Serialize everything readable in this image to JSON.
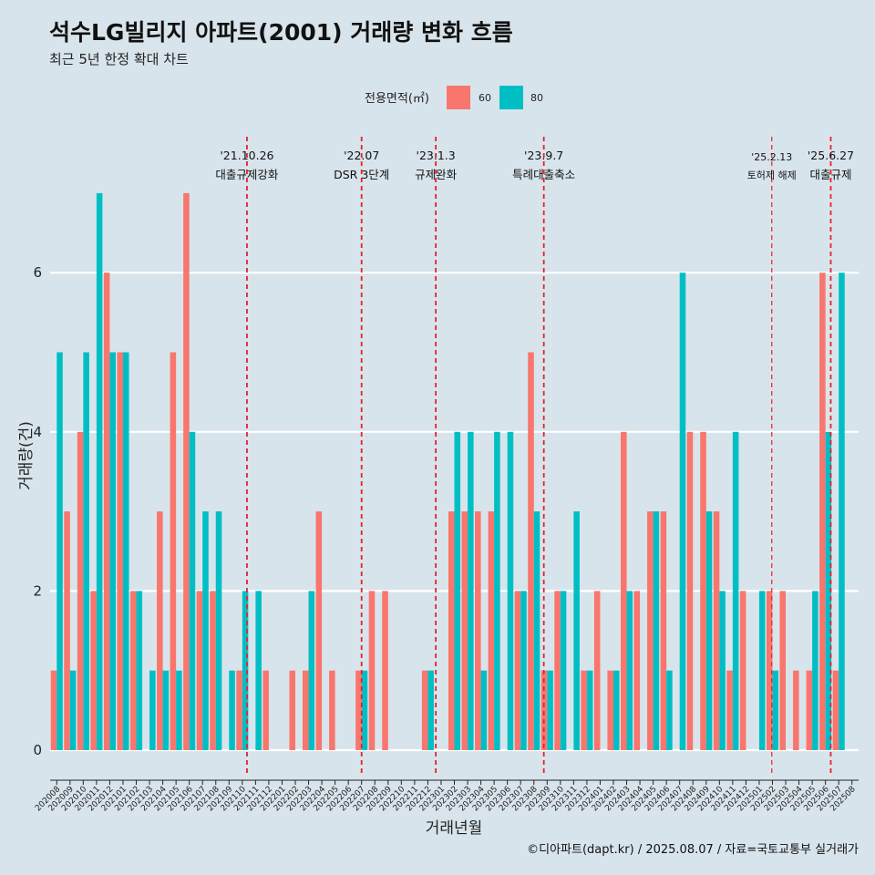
{
  "chart_data": {
    "type": "bar",
    "title": "석수LG빌리지 아파트(2001) 거래량 변화 흐름",
    "subtitle": "최근 5년 한정 확대 차트",
    "xlabel": "거래년월",
    "ylabel": "거래량(건)",
    "ylim": [
      0,
      7.5
    ],
    "yticks": [
      0,
      2,
      4,
      6
    ],
    "legend": {
      "title": "전용면적(㎡)",
      "position": "top",
      "entries": [
        {
          "name": "60",
          "color": "#f8766d"
        },
        {
          "name": "80",
          "color": "#00bfc4"
        }
      ]
    },
    "categories": [
      "202008",
      "202009",
      "202010",
      "202011",
      "202012",
      "202101",
      "202102",
      "202103",
      "202104",
      "202105",
      "202106",
      "202107",
      "202108",
      "202109",
      "202110",
      "202111",
      "202112",
      "202201",
      "202202",
      "202203",
      "202204",
      "202205",
      "202206",
      "202207",
      "202208",
      "202209",
      "202210",
      "202211",
      "202212",
      "202301",
      "202302",
      "202303",
      "202304",
      "202305",
      "202306",
      "202307",
      "202308",
      "202309",
      "202310",
      "202311",
      "202312",
      "202401",
      "202402",
      "202403",
      "202404",
      "202405",
      "202406",
      "202407",
      "202408",
      "202409",
      "202410",
      "202411",
      "202412",
      "202501",
      "202502",
      "202503",
      "202504",
      "202505",
      "202506",
      "202507",
      "202508"
    ],
    "series": [
      {
        "name": "60",
        "color": "#f8766d",
        "values": [
          1,
          3,
          4,
          2,
          6,
          5,
          2,
          0,
          3,
          5,
          7,
          2,
          2,
          0,
          1,
          0,
          1,
          0,
          1,
          1,
          3,
          1,
          0,
          1,
          2,
          2,
          0,
          0,
          1,
          0,
          3,
          3,
          3,
          3,
          0,
          2,
          5,
          1,
          2,
          0,
          1,
          2,
          1,
          4,
          2,
          3,
          3,
          0,
          4,
          4,
          3,
          1,
          2,
          0,
          2,
          2,
          1,
          1,
          6,
          1,
          0
        ]
      },
      {
        "name": "80",
        "color": "#00bfc4",
        "values": [
          5,
          1,
          5,
          7,
          5,
          5,
          2,
          1,
          1,
          1,
          4,
          3,
          3,
          1,
          2,
          2,
          0,
          0,
          0,
          2,
          0,
          0,
          0,
          1,
          0,
          0,
          0,
          0,
          1,
          0,
          4,
          4,
          1,
          4,
          4,
          2,
          3,
          1,
          2,
          3,
          1,
          0,
          1,
          2,
          0,
          3,
          1,
          6,
          0,
          3,
          2,
          4,
          0,
          2,
          1,
          0,
          0,
          2,
          4,
          6,
          0
        ]
      }
    ],
    "events": [
      {
        "date": "'21.10.26",
        "label": "대출규제강화",
        "after": "202110",
        "frac": 0.85,
        "style": "normal"
      },
      {
        "date": "'22.07",
        "label": "DSR 3단계",
        "after": "202207",
        "frac": 0.5,
        "style": "normal"
      },
      {
        "date": "'23.1.3",
        "label": "규제완화",
        "after": "202301",
        "frac": 0.1,
        "style": "normal"
      },
      {
        "date": "'23.9.7",
        "label": "특례대출축소",
        "after": "202309",
        "frac": 0.25,
        "style": "normal"
      },
      {
        "date": "'25.2.13",
        "label": "토허제 해제",
        "after": "202502",
        "frac": 0.45,
        "style": "small"
      },
      {
        "date": "'25.6.27",
        "label": "대출규제",
        "after": "202506",
        "frac": 0.9,
        "style": "normal"
      }
    ],
    "caption": "©디아파트(dapt.kr) / 2025.08.07 / 자료=국토교통부 실거래가"
  }
}
